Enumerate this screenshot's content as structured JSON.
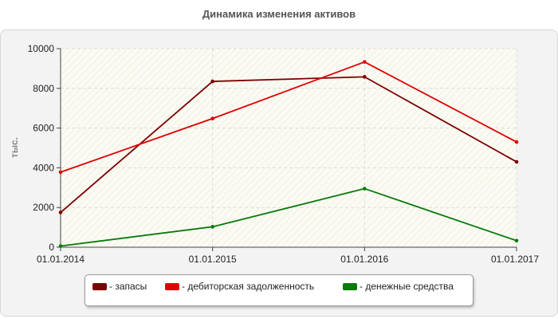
{
  "chart_data": {
    "type": "line",
    "title": "Динамика изменения активов",
    "ylabel": "тыс.",
    "xlabel": "",
    "categories": [
      "01.01.2014",
      "01.01.2015",
      "01.01.2016",
      "01.01.2017"
    ],
    "y_ticks": [
      "0",
      "2000",
      "4000",
      "6000",
      "8000",
      "10000"
    ],
    "ylim": [
      0,
      10000
    ],
    "grid": true,
    "legend_position": "bottom",
    "series": [
      {
        "name": "- запасы",
        "color": "#7b0000",
        "values": [
          1750,
          8350,
          8580,
          4300
        ]
      },
      {
        "name": "- дебиторская задолженность",
        "color": "#e00000",
        "values": [
          3780,
          6480,
          9330,
          5300
        ]
      },
      {
        "name": "- денежные средства",
        "color": "#0a7a0a",
        "values": [
          60,
          1030,
          2950,
          330
        ]
      }
    ]
  }
}
